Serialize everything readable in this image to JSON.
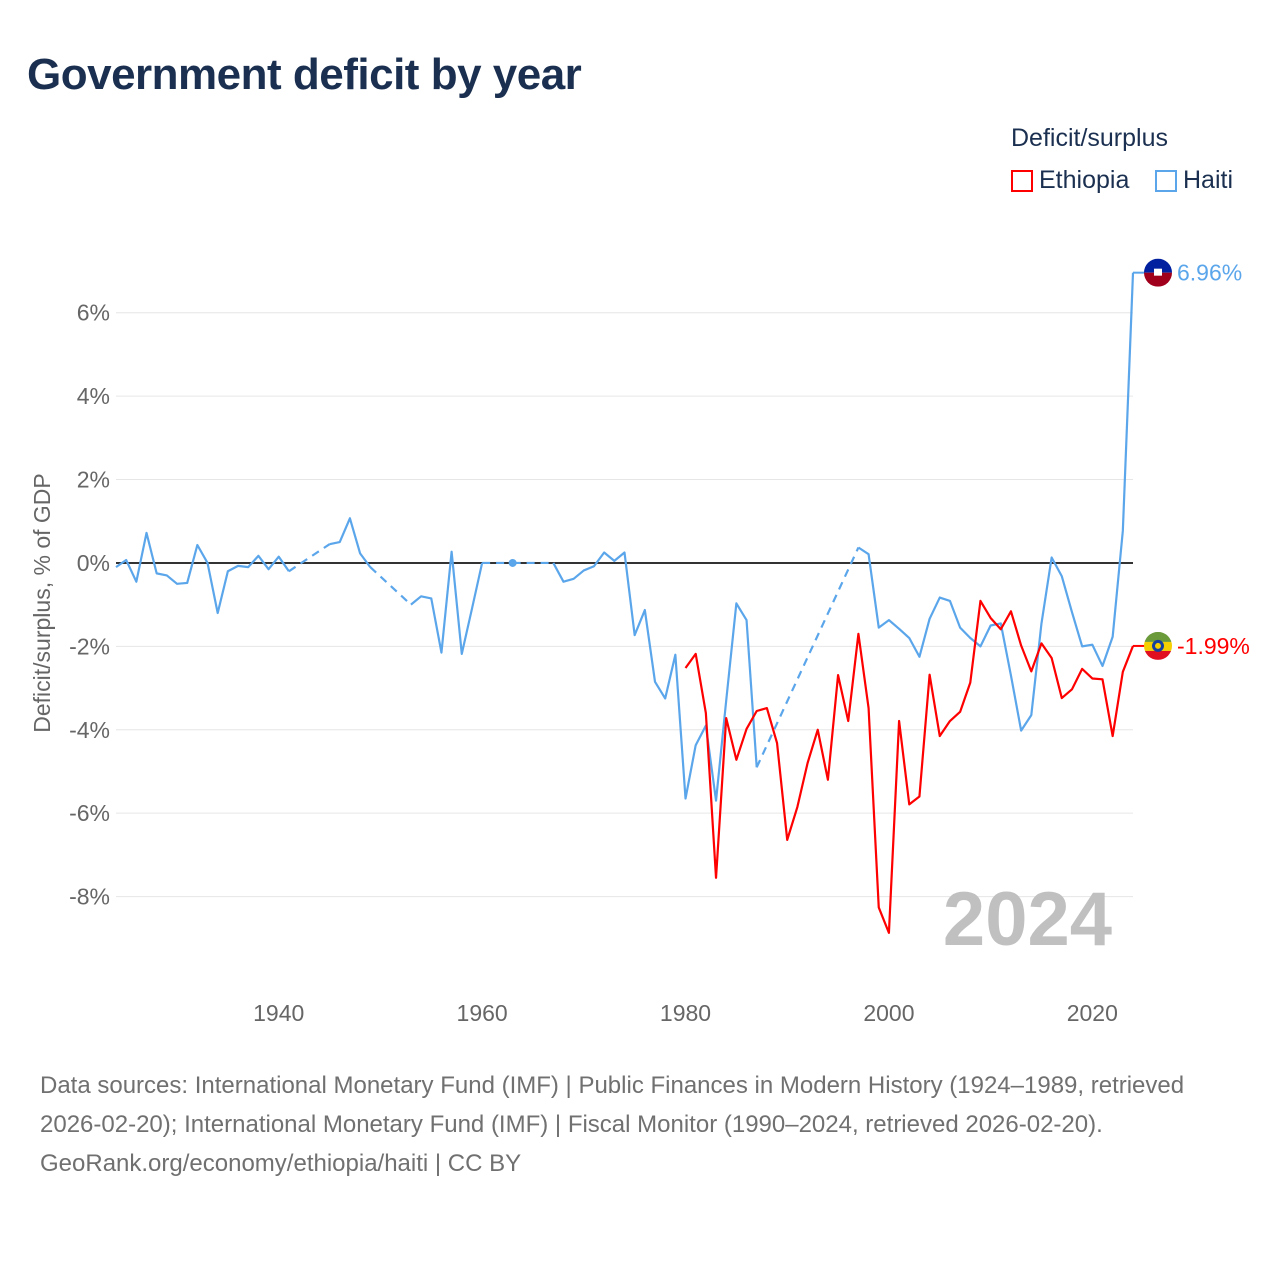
{
  "title": "Government deficit by year",
  "legend": {
    "title": "Deficit/surplus",
    "items": [
      {
        "label": "Ethiopia",
        "color": "#ff0000"
      },
      {
        "label": "Haiti",
        "color": "#5ba6eb"
      }
    ]
  },
  "footer": {
    "sources": "Data sources: International Monetary Fund (IMF) | Public Finances in Modern History (1924–1989, retrieved 2026-02-20); International Monetary Fund (IMF) | Fiscal Monitor (1990–2024, retrieved 2026-02-20).",
    "credit": "GeoRank.org/economy/ethiopia/haiti | CC BY"
  },
  "chart_data": {
    "type": "line",
    "title": "Government deficit by year",
    "xlabel": "",
    "ylabel": "Deficit/surplus, % of GDP",
    "xlim": [
      1924,
      2024
    ],
    "ylim": [
      -10,
      7
    ],
    "xticks": [
      1940,
      1960,
      1980,
      2000,
      2020
    ],
    "yticks": [
      -8,
      -6,
      -4,
      -2,
      0,
      2,
      4,
      6
    ],
    "ytick_labels": [
      "-8%",
      "-6%",
      "-4%",
      "-2%",
      "0%",
      "2%",
      "4%",
      "6%"
    ],
    "year_watermark": "2024",
    "grid": true,
    "legend_position": "top-right",
    "x": [
      1924,
      1925,
      1926,
      1927,
      1928,
      1929,
      1930,
      1931,
      1932,
      1933,
      1934,
      1935,
      1936,
      1937,
      1938,
      1939,
      1940,
      1941,
      1942,
      1943,
      1944,
      1945,
      1946,
      1947,
      1948,
      1949,
      1950,
      1951,
      1952,
      1953,
      1954,
      1955,
      1956,
      1957,
      1958,
      1959,
      1960,
      1961,
      1962,
      1963,
      1964,
      1965,
      1966,
      1967,
      1968,
      1969,
      1970,
      1971,
      1972,
      1973,
      1974,
      1975,
      1976,
      1977,
      1978,
      1979,
      1980,
      1981,
      1982,
      1983,
      1984,
      1985,
      1986,
      1987,
      1988,
      1989,
      1990,
      1991,
      1992,
      1993,
      1994,
      1995,
      1996,
      1997,
      1998,
      1999,
      2000,
      2001,
      2002,
      2003,
      2004,
      2005,
      2006,
      2007,
      2008,
      2009,
      2010,
      2011,
      2012,
      2013,
      2014,
      2015,
      2016,
      2017,
      2018,
      2019,
      2020,
      2021,
      2022,
      2023,
      2024
    ],
    "series": [
      {
        "name": "Haiti",
        "color": "#5ba6eb",
        "end_label": "6.96%",
        "values": [
          -0.1,
          0.07,
          -0.45,
          0.72,
          -0.25,
          -0.3,
          -0.5,
          -0.48,
          0.43,
          0.0,
          -1.2,
          -0.2,
          -0.07,
          -0.1,
          0.17,
          -0.15,
          0.15,
          -0.2,
          null,
          null,
          null,
          0.45,
          0.5,
          1.07,
          0.23,
          -0.1,
          null,
          null,
          null,
          -1.0,
          -0.8,
          -0.85,
          -2.15,
          0.27,
          -2.18,
          -1.1,
          0,
          null,
          null,
          0,
          null,
          null,
          null,
          0,
          -0.45,
          -0.38,
          -0.18,
          -0.08,
          0.25,
          0.05,
          0.25,
          -1.73,
          -1.13,
          -2.85,
          -3.25,
          -2.2,
          -5.65,
          -4.37,
          -3.9,
          -5.7,
          -3.3,
          -0.97,
          -1.37,
          -4.9,
          null,
          null,
          null,
          null,
          null,
          null,
          null,
          null,
          null,
          0.37,
          0.21,
          -1.55,
          -1.37,
          -1.58,
          -1.8,
          -2.25,
          -1.34,
          -0.83,
          -0.91,
          -1.55,
          -1.8,
          -2.0,
          -1.5,
          -1.45,
          -2.7,
          -4.02,
          -3.65,
          -1.45,
          0.13,
          -0.32,
          -1.18,
          -2.0,
          -1.96,
          -2.47,
          -1.77,
          0.77,
          6.96
        ]
      },
      {
        "name": "Ethiopia",
        "color": "#ff0000",
        "end_label": "-1.99%",
        "values": [
          null,
          null,
          null,
          null,
          null,
          null,
          null,
          null,
          null,
          null,
          null,
          null,
          null,
          null,
          null,
          null,
          null,
          null,
          null,
          null,
          null,
          null,
          null,
          null,
          null,
          null,
          null,
          null,
          null,
          null,
          null,
          null,
          null,
          null,
          null,
          null,
          null,
          null,
          null,
          null,
          null,
          null,
          null,
          null,
          null,
          null,
          null,
          null,
          null,
          null,
          null,
          null,
          null,
          null,
          null,
          null,
          -2.52,
          -2.18,
          -3.6,
          -7.55,
          -3.72,
          -4.72,
          -3.98,
          -3.55,
          -3.48,
          -4.32,
          -6.64,
          -5.85,
          -4.8,
          -4.0,
          -5.2,
          -2.69,
          -3.79,
          -1.7,
          -3.48,
          -8.26,
          -8.87,
          -3.79,
          -5.79,
          -5.6,
          -2.68,
          -4.15,
          -3.79,
          -3.57,
          -2.87,
          -0.91,
          -1.32,
          -1.59,
          -1.16,
          -1.98,
          -2.6,
          -1.93,
          -2.28,
          -3.24,
          -3.03,
          -2.54,
          -2.77,
          -2.79,
          -4.15,
          -2.61,
          -1.99
        ]
      }
    ]
  }
}
